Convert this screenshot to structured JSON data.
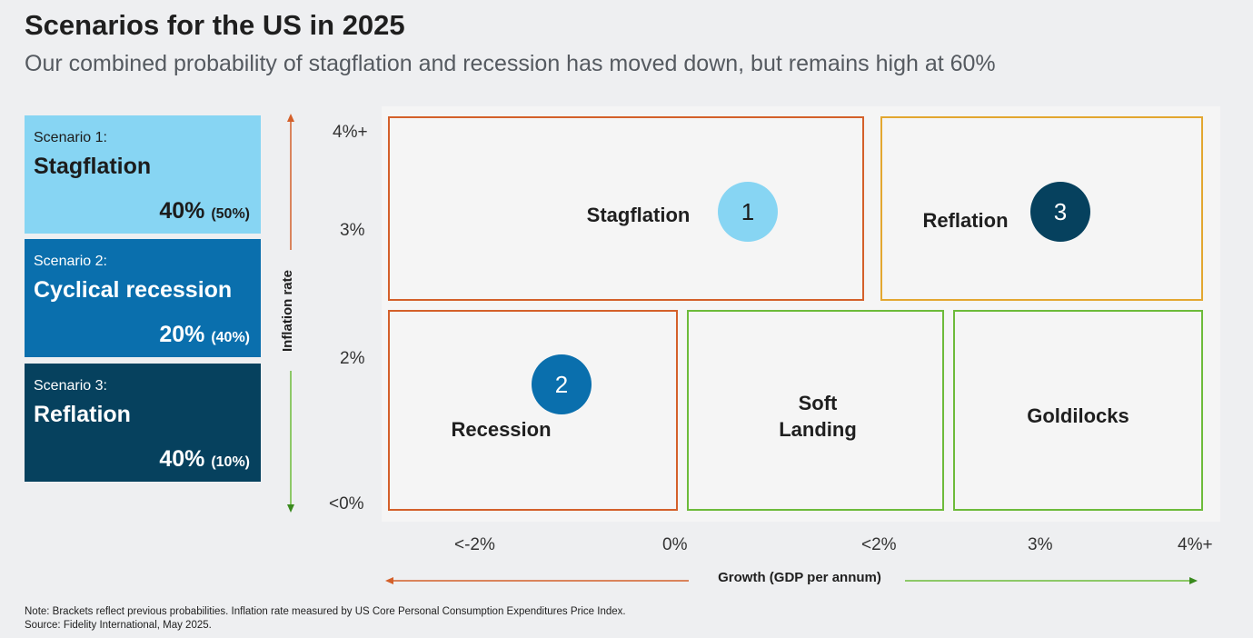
{
  "title": "Scenarios for the US in 2025",
  "subtitle": "Our combined probability of stagflation and recession has moved down, but remains high at 60%",
  "scenarios": [
    {
      "label": "Scenario 1:",
      "name": "Stagflation",
      "probability": "40%",
      "previous": "(50%)"
    },
    {
      "label": "Scenario 2:",
      "name": "Cyclical recession",
      "probability": "20%",
      "previous": "(40%)"
    },
    {
      "label": "Scenario 3:",
      "name": "Reflation",
      "probability": "40%",
      "previous": "(10%)"
    }
  ],
  "y_axis": {
    "label": "Inflation rate",
    "ticks": [
      "4%+",
      "3%",
      "2%",
      "<0%"
    ]
  },
  "x_axis": {
    "label": "Growth (GDP per annum)",
    "ticks": [
      "<-2%",
      "0%",
      "<2%",
      "3%",
      "4%+"
    ]
  },
  "regions": {
    "stagflation": {
      "label": "Stagflation",
      "marker": "1"
    },
    "reflation": {
      "label": "Reflation",
      "marker": "3"
    },
    "recession": {
      "label": "Recession",
      "marker": "2"
    },
    "soft_landing": {
      "label_line1": "Soft",
      "label_line2": "Landing"
    },
    "goldilocks": {
      "label": "Goldilocks"
    }
  },
  "colors": {
    "scenario1": "#87d5f3",
    "scenario2": "#0a6fad",
    "scenario3": "#06415e",
    "orange_border": "#d4602a",
    "yellow_border": "#e3a730",
    "green_border": "#6dbb3a"
  },
  "notes": {
    "note": "Note: Brackets reflect previous probabilities. Inflation rate measured by US Core Personal Consumption Expenditures Price Index.",
    "source": "Source: Fidelity International, May 2025."
  }
}
